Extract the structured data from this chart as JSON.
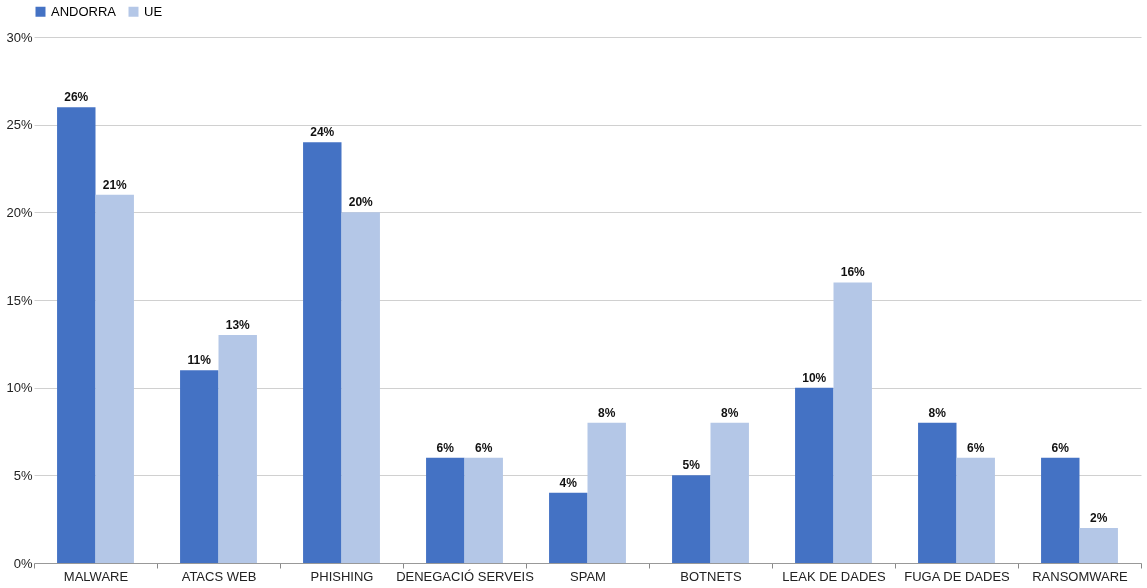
{
  "chart_data": {
    "type": "bar",
    "categories": [
      "MALWARE",
      "ATACS WEB",
      "PHISHING",
      "DENEGACIÓ SERVEIS",
      "SPAM",
      "BOTNETS",
      "LEAK DE DADES",
      "FUGA DE DADES",
      "RANSOMWARE"
    ],
    "series": [
      {
        "name": "ANDORRA",
        "color": "#4472c4",
        "values": [
          26,
          11,
          24,
          6,
          4,
          5,
          10,
          8,
          6
        ],
        "value_labels": [
          "26%",
          "11%",
          "24%",
          "6%",
          "4%",
          "5%",
          "10%",
          "8%",
          "6%"
        ]
      },
      {
        "name": "UE",
        "color": "#b4c7e7",
        "values": [
          21,
          13,
          20,
          6,
          8,
          8,
          16,
          6,
          2
        ],
        "value_labels": [
          "21%",
          "13%",
          "20%",
          "6%",
          "8%",
          "8%",
          "16%",
          "6%",
          "2%"
        ]
      }
    ],
    "ylim": [
      0,
      30
    ],
    "yticks": [
      {
        "value": 0,
        "label": "0%"
      },
      {
        "value": 5,
        "label": "5%"
      },
      {
        "value": 10,
        "label": "10%"
      },
      {
        "value": 15,
        "label": "15%"
      },
      {
        "value": 20,
        "label": "20%"
      },
      {
        "value": 25,
        "label": "25%"
      },
      {
        "value": 30,
        "label": "30%"
      }
    ],
    "grid": "y",
    "legend": "top"
  }
}
